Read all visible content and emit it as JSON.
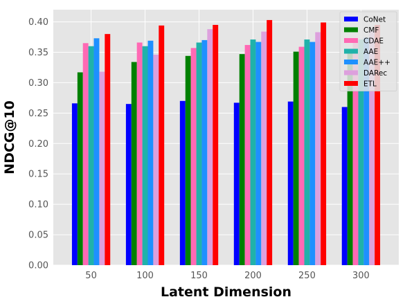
{
  "chart_data": {
    "type": "bar",
    "categories": [
      "50",
      "100",
      "150",
      "200",
      "250",
      "300"
    ],
    "series": [
      {
        "name": "CoNet",
        "color": "#0000ff",
        "values": [
          0.266,
          0.265,
          0.27,
          0.267,
          0.269,
          0.26
        ]
      },
      {
        "name": "CMF",
        "color": "#008000",
        "values": [
          0.317,
          0.334,
          0.344,
          0.347,
          0.351,
          0.348
        ]
      },
      {
        "name": "CDAE",
        "color": "#ff69b4",
        "values": [
          0.365,
          0.366,
          0.357,
          0.362,
          0.359,
          0.368
        ]
      },
      {
        "name": "AAE",
        "color": "#20b2aa",
        "values": [
          0.36,
          0.36,
          0.366,
          0.371,
          0.371,
          0.371
        ]
      },
      {
        "name": "AAE++",
        "color": "#1e90ff",
        "values": [
          0.373,
          0.369,
          0.37,
          0.367,
          0.367,
          0.374
        ]
      },
      {
        "name": "DARec",
        "color": "#dda0dd",
        "values": [
          0.318,
          0.346,
          0.388,
          0.384,
          0.383,
          0.385
        ]
      },
      {
        "name": "ETL",
        "color": "#ff0000",
        "values": [
          0.38,
          0.394,
          0.395,
          0.403,
          0.399,
          0.395
        ]
      }
    ],
    "title": "",
    "xlabel": "Latent Dimension",
    "ylabel": "NDCG@10",
    "ylim": [
      0,
      0.42
    ],
    "yticks": [
      "0.00",
      "0.05",
      "0.10",
      "0.15",
      "0.20",
      "0.25",
      "0.30",
      "0.35",
      "0.40"
    ],
    "grid": true,
    "legend_position": "top-right",
    "background_color": "#e5e5e5",
    "grid_color": "#ffffff"
  }
}
